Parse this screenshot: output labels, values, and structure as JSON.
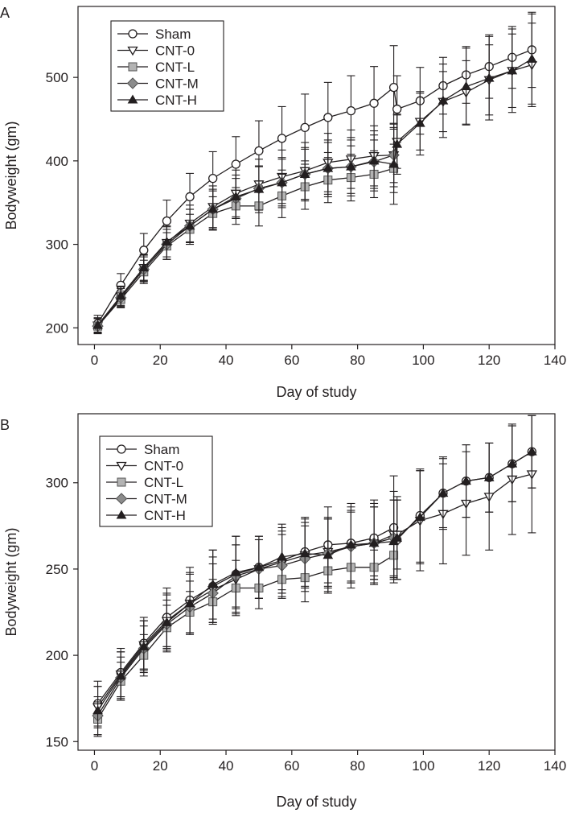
{
  "chart_data": [
    {
      "panel_label": "A",
      "type": "line",
      "xlabel": "Day of study",
      "ylabel": "Bodyweight (gm)",
      "xlim": [
        -5,
        140
      ],
      "ylim": [
        180,
        585
      ],
      "xticks": [
        0,
        20,
        40,
        60,
        80,
        100,
        120,
        140
      ],
      "yticks": [
        200,
        300,
        400,
        500
      ],
      "grid": false,
      "legend_position": "top-left",
      "series": [
        {
          "name": "Sham",
          "marker": "circle-open",
          "x": [
            1,
            8,
            15,
            22,
            29,
            36,
            43,
            50,
            57,
            64,
            71,
            78,
            85,
            91,
            92,
            99,
            106,
            113,
            120,
            127,
            133
          ],
          "y": [
            205,
            251,
            293,
            328,
            357,
            379,
            396,
            412,
            427,
            440,
            452,
            460,
            469,
            488,
            462,
            472,
            490,
            503,
            513,
            524,
            533
          ],
          "err": [
            10,
            14,
            20,
            25,
            28,
            32,
            33,
            36,
            38,
            40,
            42,
            42,
            44,
            50,
            40,
            40,
            34,
            34,
            38,
            37,
            45
          ]
        },
        {
          "name": "CNT-0",
          "marker": "triangle-down-open",
          "x": [
            1,
            8,
            15,
            22,
            29,
            36,
            43,
            50,
            57,
            64,
            71,
            78,
            85,
            91,
            92,
            99,
            106,
            113,
            120,
            127,
            133
          ],
          "y": [
            203,
            238,
            272,
            302,
            325,
            345,
            361,
            372,
            381,
            388,
            398,
            402,
            406,
            407,
            423,
            447,
            471,
            482,
            497,
            508,
            515
          ],
          "err": [
            9,
            12,
            16,
            20,
            22,
            25,
            28,
            30,
            32,
            34,
            35,
            35,
            36,
            38,
            32,
            34,
            36,
            38,
            42,
            44,
            50
          ]
        },
        {
          "name": "CNT-L",
          "marker": "square-gray",
          "x": [
            1,
            8,
            15,
            22,
            29,
            36,
            43,
            50,
            57,
            64,
            71,
            78,
            85,
            91
          ],
          "y": [
            202,
            234,
            267,
            298,
            318,
            337,
            346,
            346,
            358,
            369,
            377,
            380,
            384,
            391
          ],
          "err": [
            9,
            10,
            14,
            16,
            18,
            20,
            22,
            24,
            26,
            27,
            27,
            28,
            28,
            29
          ]
        },
        {
          "name": "CNT-M",
          "marker": "diamond-gray",
          "x": [
            1,
            8,
            15,
            22,
            29,
            36,
            43,
            50,
            57,
            64,
            71,
            78,
            85,
            91
          ],
          "y": [
            202,
            236,
            270,
            300,
            322,
            342,
            355,
            367,
            374,
            384,
            391,
            393,
            399,
            407
          ],
          "err": [
            9,
            11,
            15,
            18,
            20,
            22,
            24,
            26,
            28,
            30,
            31,
            32,
            32,
            33
          ]
        },
        {
          "name": "CNT-H",
          "marker": "triangle-up-filled",
          "x": [
            1,
            8,
            15,
            22,
            29,
            36,
            43,
            50,
            57,
            64,
            71,
            78,
            85,
            91,
            92,
            99,
            106,
            113,
            120,
            127,
            133
          ],
          "y": [
            203,
            238,
            272,
            303,
            322,
            342,
            357,
            366,
            374,
            384,
            391,
            393,
            400,
            396,
            420,
            445,
            472,
            489,
            499,
            508,
            522
          ],
          "err": [
            9,
            11,
            15,
            18,
            20,
            24,
            26,
            28,
            30,
            32,
            34,
            35,
            36,
            48,
            36,
            38,
            44,
            46,
            50,
            50,
            54
          ]
        }
      ]
    },
    {
      "panel_label": "B",
      "type": "line",
      "xlabel": "Day of study",
      "ylabel": "Bodyweight (gm)",
      "xlim": [
        -5,
        140
      ],
      "ylim": [
        145,
        340
      ],
      "xticks": [
        0,
        20,
        40,
        60,
        80,
        100,
        120,
        140
      ],
      "yticks": [
        150,
        200,
        250,
        300
      ],
      "grid": false,
      "legend_position": "top-left",
      "series": [
        {
          "name": "Sham",
          "marker": "circle-open",
          "x": [
            1,
            8,
            15,
            22,
            29,
            36,
            43,
            50,
            57,
            64,
            71,
            78,
            85,
            91,
            92,
            99,
            106,
            113,
            120,
            127,
            133
          ],
          "y": [
            172,
            190,
            207,
            222,
            232,
            240,
            247,
            251,
            255,
            260,
            264,
            265,
            268,
            274,
            267,
            281,
            294,
            301,
            303,
            311,
            318
          ],
          "err": [
            13,
            14,
            15,
            17,
            19,
            21,
            22,
            18,
            19,
            20,
            22,
            23,
            22,
            30,
            23,
            27,
            21,
            21,
            20,
            22,
            21
          ]
        },
        {
          "name": "CNT-0",
          "marker": "triangle-down-open",
          "x": [
            1,
            8,
            15,
            22,
            29,
            36,
            43,
            50,
            57,
            64,
            71,
            78,
            85,
            91,
            92,
            99,
            106,
            113,
            120,
            127,
            133
          ],
          "y": [
            170,
            189,
            206,
            220,
            230,
            238,
            244,
            250,
            254,
            258,
            260,
            263,
            265,
            270,
            270,
            278,
            282,
            288,
            292,
            302,
            305
          ],
          "err": [
            12,
            13,
            14,
            15,
            17,
            19,
            20,
            17,
            18,
            19,
            20,
            21,
            21,
            25,
            20,
            29,
            29,
            30,
            31,
            32,
            34
          ]
        },
        {
          "name": "CNT-L",
          "marker": "square-gray",
          "x": [
            1,
            8,
            15,
            22,
            29,
            36,
            43,
            50,
            57,
            64,
            71,
            78,
            85,
            91
          ],
          "y": [
            163,
            185,
            200,
            216,
            225,
            231,
            239,
            239,
            244,
            245,
            249,
            251,
            251,
            258
          ],
          "err": [
            10,
            11,
            12,
            13,
            12,
            13,
            16,
            12,
            11,
            14,
            13,
            12,
            10,
            12
          ]
        },
        {
          "name": "CNT-M",
          "marker": "diamond-gray",
          "x": [
            1,
            8,
            15,
            22,
            29,
            36,
            43,
            50,
            57,
            64,
            71,
            78,
            85,
            91
          ],
          "y": [
            165,
            187,
            204,
            218,
            228,
            236,
            246,
            250,
            252,
            256,
            259,
            263,
            265,
            268
          ],
          "err": [
            11,
            12,
            13,
            14,
            15,
            17,
            18,
            17,
            18,
            19,
            20,
            20,
            21,
            22
          ]
        },
        {
          "name": "CNT-H",
          "marker": "triangle-up-filled",
          "x": [
            1,
            8,
            15,
            22,
            29,
            36,
            43,
            50,
            57,
            64,
            71,
            78,
            85,
            91,
            92,
            99,
            106,
            113,
            120,
            127,
            133
          ],
          "y": [
            168,
            188,
            205,
            219,
            230,
            241,
            248,
            251,
            257,
            259,
            258,
            264,
            265,
            266,
            268,
            280,
            294,
            301,
            303,
            311,
            318
          ],
          "err": [
            14,
            14,
            15,
            17,
            18,
            20,
            21,
            18,
            19,
            20,
            21,
            22,
            23,
            24,
            24,
            27,
            20,
            21,
            20,
            22,
            21
          ]
        }
      ]
    }
  ]
}
